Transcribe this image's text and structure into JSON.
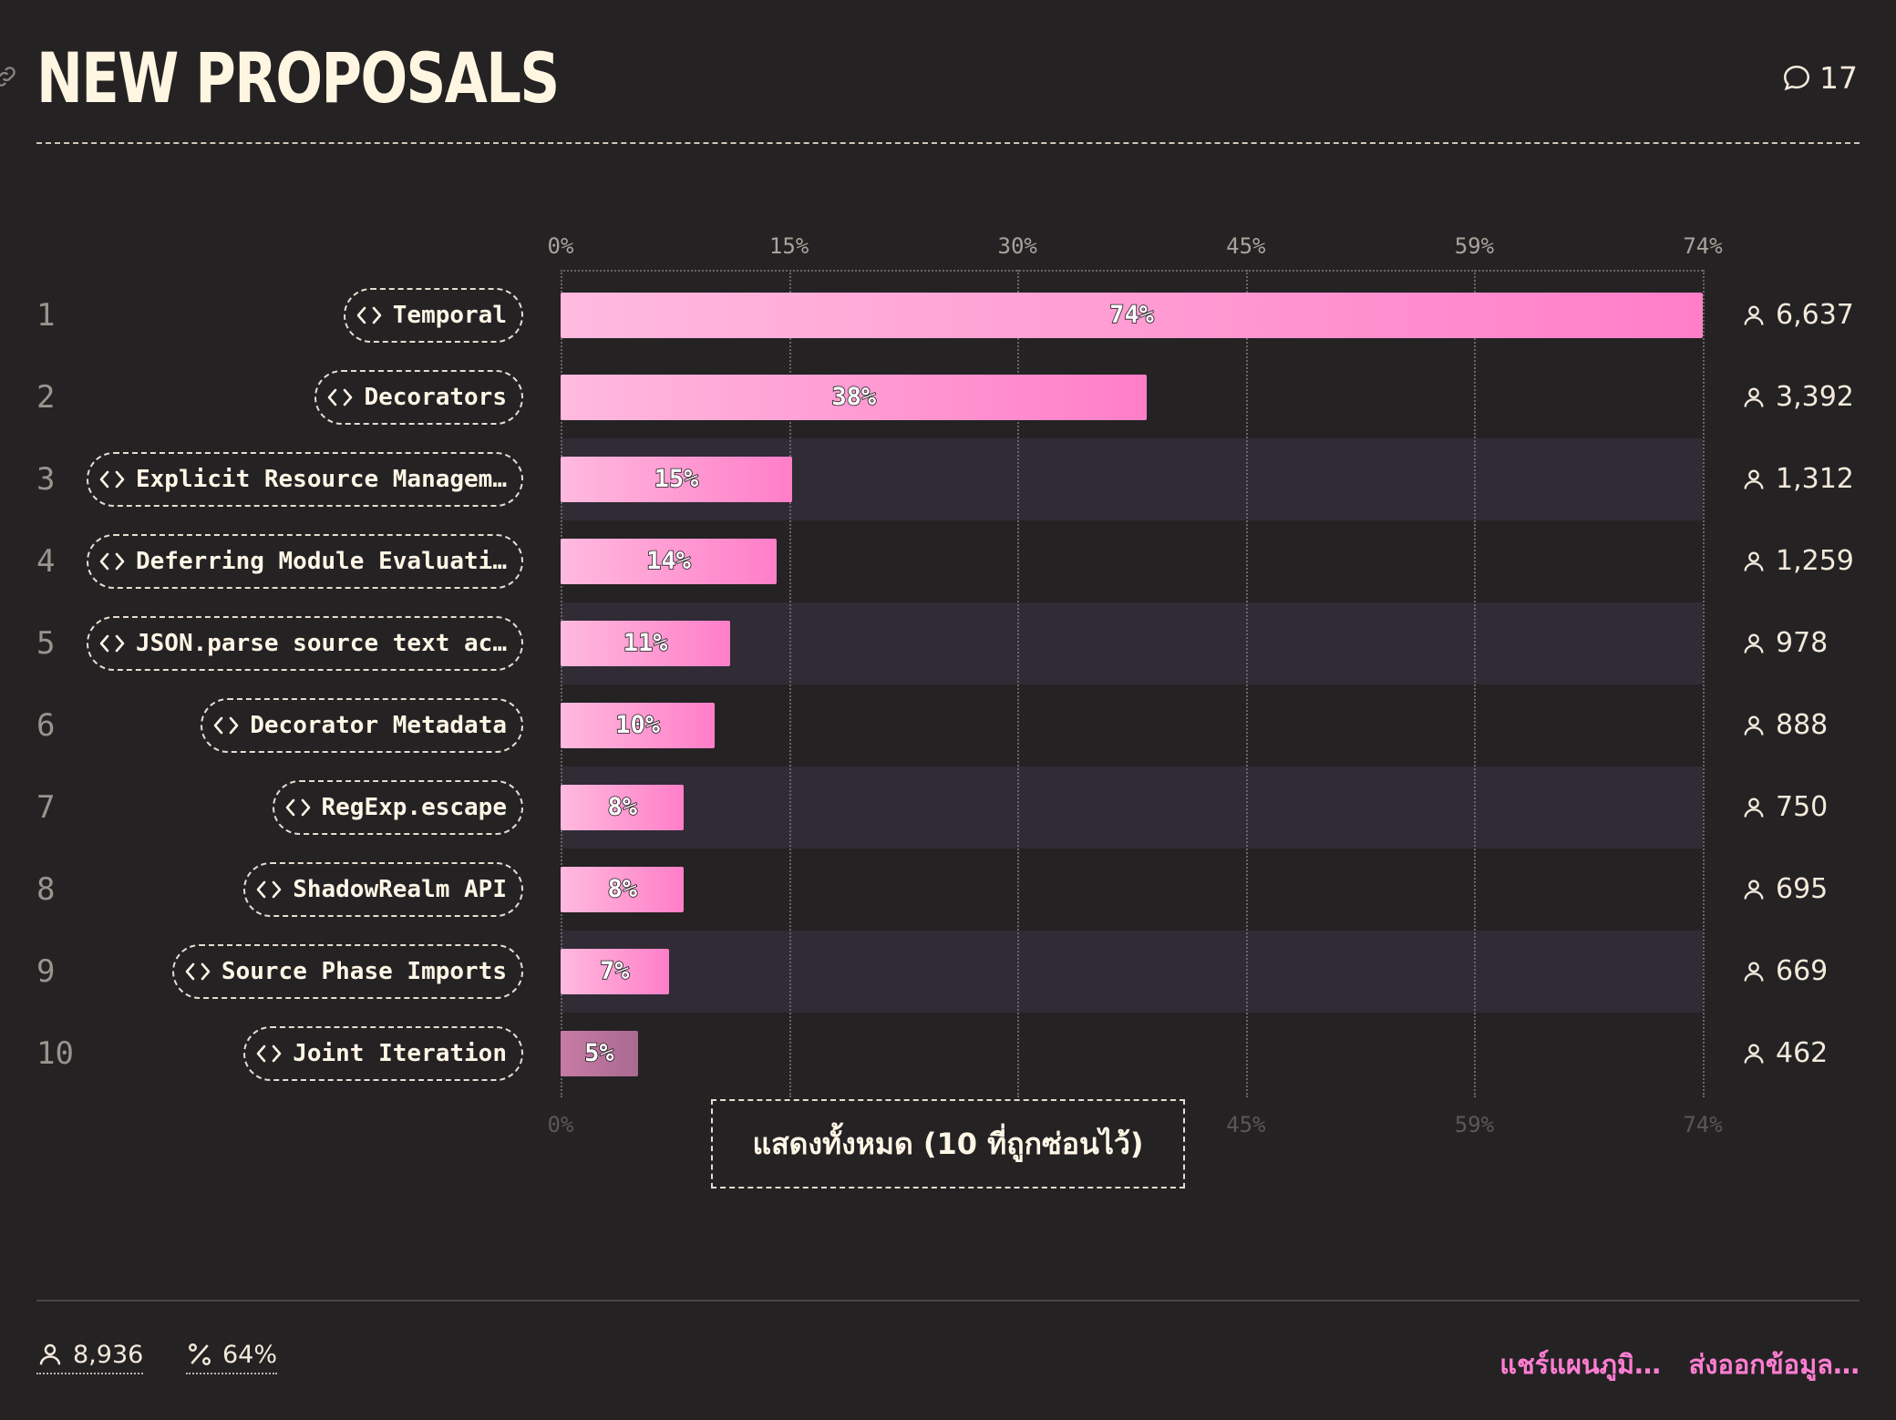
{
  "header": {
    "title": "NEW PROPOSALS",
    "comment_count": "17"
  },
  "colors": {
    "background": "#252224",
    "bar_gradient_start": "#ffbade",
    "bar_gradient_end": "#ff7ec8",
    "accent_link": "#ff7ed2"
  },
  "icons": {
    "title": "link-icon",
    "comments": "speech-bubble-icon",
    "proposal": "code-brackets-icon",
    "respondents": "person-icon",
    "percentage": "percent-icon"
  },
  "chart_data": {
    "type": "bar",
    "orientation": "horizontal",
    "x_ticks": [
      "0%",
      "15%",
      "30%",
      "45%",
      "59%",
      "74%"
    ],
    "xlim": [
      0,
      74
    ],
    "grid": true,
    "categories": [
      "Temporal",
      "Decorators",
      "Explicit Resource Managem…",
      "Deferring Module Evaluati…",
      "JSON.parse source text ac…",
      "Decorator Metadata",
      "RegExp.escape",
      "ShadowRealm API",
      "Source Phase Imports",
      "Joint Iteration"
    ],
    "ranks": [
      "1",
      "2",
      "3",
      "4",
      "5",
      "6",
      "7",
      "8",
      "9",
      "10"
    ],
    "values": [
      74,
      38,
      15,
      14,
      11,
      10,
      8,
      8,
      7,
      5
    ],
    "value_labels": [
      "74%",
      "38%",
      "15%",
      "14%",
      "11%",
      "10%",
      "8%",
      "8%",
      "7%",
      "5%"
    ],
    "counts": [
      "6,637",
      "3,392",
      "1,312",
      "1,259",
      "978",
      "888",
      "750",
      "695",
      "669",
      "462"
    ]
  },
  "show_all_button": "แสดงทั้งหมด (10 ที่ถูกซ่อนไว้)",
  "footer": {
    "total_respondents": "8,936",
    "percent_answered": "64%",
    "share_link": "แชร์แผนภูมิ…",
    "export_link": "ส่งออกข้อมูล…"
  }
}
